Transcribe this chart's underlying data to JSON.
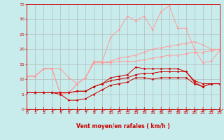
{
  "background_color": "#c8ecec",
  "grid_color": "#b0b0b0",
  "xlabel": "Vent moyen/en rafales ( km/h )",
  "xlim": [
    0,
    23
  ],
  "ylim": [
    0,
    35
  ],
  "yticks": [
    0,
    5,
    10,
    15,
    20,
    25,
    30,
    35
  ],
  "xticks": [
    0,
    1,
    2,
    3,
    4,
    5,
    6,
    7,
    8,
    9,
    10,
    11,
    12,
    13,
    14,
    15,
    16,
    17,
    18,
    19,
    20,
    21,
    22,
    23
  ],
  "x": [
    0,
    1,
    2,
    3,
    4,
    5,
    6,
    7,
    8,
    9,
    10,
    11,
    12,
    13,
    14,
    15,
    16,
    17,
    18,
    19,
    20,
    21,
    22,
    23
  ],
  "lines_dark": [
    [
      5.5,
      5.5,
      5.5,
      5.5,
      5.5,
      5.5,
      6.0,
      6.0,
      7.5,
      8.5,
      10.5,
      11.0,
      11.5,
      14.0,
      13.5,
      13.5,
      13.5,
      13.5,
      13.5,
      12.5,
      9.0,
      7.5,
      8.5,
      8.5
    ],
    [
      5.5,
      5.5,
      5.5,
      5.5,
      5.0,
      3.0,
      3.0,
      3.5,
      5.0,
      6.5,
      8.0,
      8.5,
      9.0,
      10.5,
      10.5,
      10.0,
      10.5,
      10.5,
      10.5,
      10.5,
      8.5,
      7.5,
      8.5,
      8.5
    ],
    [
      5.5,
      5.5,
      5.5,
      5.5,
      5.5,
      5.5,
      6.0,
      6.0,
      7.5,
      8.5,
      9.5,
      10.0,
      10.5,
      11.5,
      12.0,
      12.0,
      12.5,
      12.5,
      12.5,
      12.5,
      9.5,
      8.5,
      8.5,
      8.5
    ]
  ],
  "lines_light": [
    [
      11.0,
      11.0,
      13.5,
      13.5,
      13.5,
      10.5,
      8.5,
      10.5,
      16.0,
      16.0,
      24.0,
      26.5,
      31.0,
      29.5,
      31.0,
      26.5,
      32.5,
      34.5,
      27.0,
      27.0,
      20.0,
      15.5,
      16.0,
      19.5
    ],
    [
      11.0,
      11.0,
      13.5,
      13.5,
      5.0,
      5.5,
      8.5,
      10.5,
      15.5,
      15.5,
      16.0,
      17.0,
      17.5,
      18.0,
      19.0,
      20.0,
      20.5,
      21.0,
      21.5,
      22.0,
      22.5,
      21.5,
      20.0,
      20.0
    ],
    [
      11.0,
      11.0,
      13.5,
      13.5,
      5.0,
      5.5,
      8.5,
      10.5,
      15.5,
      15.5,
      15.5,
      16.0,
      16.0,
      16.0,
      16.5,
      17.0,
      17.5,
      18.0,
      18.0,
      18.5,
      19.0,
      19.0,
      19.5,
      20.0
    ]
  ],
  "color_dark": "#cc0000",
  "color_light": "#ff9999",
  "marker_dark": "D",
  "marker_light": "^",
  "marker_size_dark": 1.5,
  "marker_size_light": 1.8,
  "label_color": "#cc0000",
  "tick_color": "#cc0000",
  "axis_color": "#cc0000",
  "label_fontsize": 5.5,
  "tick_fontsize": 4.5
}
